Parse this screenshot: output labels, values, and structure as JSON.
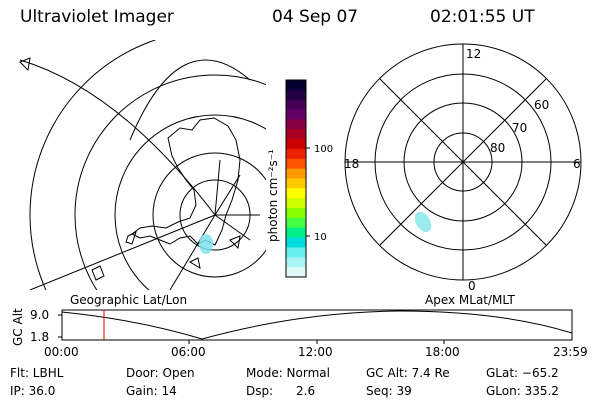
{
  "header": {
    "instrument": "Ultraviolet Imager",
    "date": "04 Sep 07",
    "time": "02:01:55 UT"
  },
  "colorbar": {
    "unit_label": "photon cm⁻²s⁻¹",
    "ticks": [
      "100",
      "10"
    ],
    "colors": [
      "#000033",
      "#220044",
      "#440055",
      "#660066",
      "#880044",
      "#aa0022",
      "#cc0000",
      "#ee2200",
      "#ff5500",
      "#ff9900",
      "#ffcc00",
      "#ffff00",
      "#ccff00",
      "#88ff00",
      "#44ff44",
      "#00ee88",
      "#00dddd",
      "#66eeee",
      "#aaf4f4",
      "#dff8f8"
    ]
  },
  "left_map": {
    "caption": "Geographic Lat/Lon"
  },
  "polar_plot": {
    "caption": "Apex MLat/MLT",
    "lat_labels": [
      "60",
      "70",
      "80"
    ],
    "mlt_labels": {
      "top": "12",
      "bottom": "0",
      "left": "18",
      "right": "6"
    }
  },
  "orbit_plot": {
    "ylabel": "GC Alt",
    "yticks": [
      "9.0",
      "1.8"
    ],
    "xticks": [
      "00:00",
      "06:00",
      "12:00",
      "18:00",
      "23:59"
    ],
    "marker_time": "02:01"
  },
  "info": {
    "flt": "Flt: LBHL",
    "ip": "IP: 36.0",
    "door": "Door: Open",
    "gain": "Gain: 14",
    "mode": "Mode: Normal",
    "dsp": "Dsp:      2.6",
    "gc_alt": "GC Alt: 7.4 Re",
    "seq": "Seq: 39",
    "glat": "GLat: −65.2",
    "glon": "GLon: 335.2"
  },
  "accent_colors": {
    "marker": "#cc0000",
    "aurora": "#7fe3ec"
  }
}
